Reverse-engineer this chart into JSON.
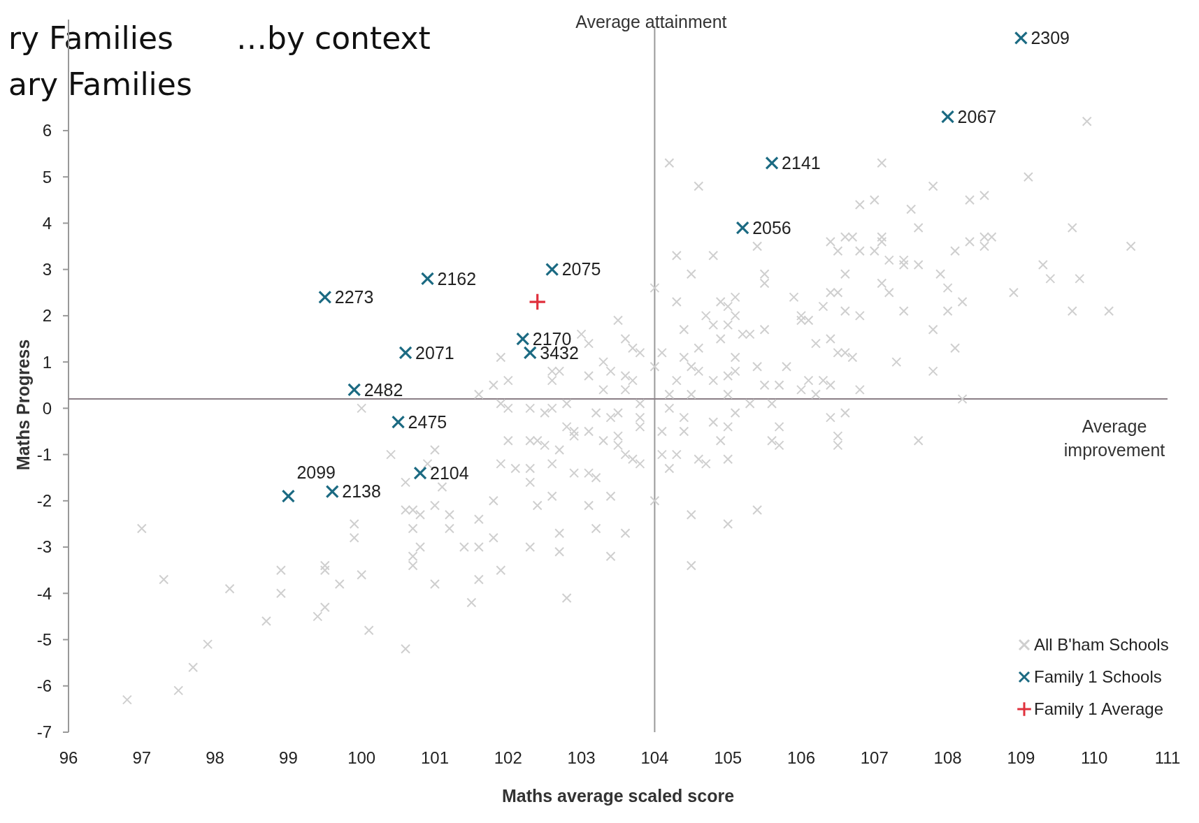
{
  "chart_data": {
    "type": "scatter",
    "title": "ry Families",
    "subtitle": "ary Families",
    "xlabel": "Maths average scaled score",
    "ylabel": "Maths Progress",
    "xlim": [
      96,
      111
    ],
    "ylim": [
      -7,
      8.4
    ],
    "xticks": [
      96,
      97,
      98,
      99,
      100,
      101,
      102,
      103,
      104,
      105,
      106,
      107,
      108,
      109,
      110,
      111
    ],
    "yticks": [
      -7,
      -6,
      -5,
      -4,
      -3,
      -2,
      -1,
      0,
      1,
      2,
      3,
      4,
      5,
      6
    ],
    "legend": "bottom right",
    "marker": "cross",
    "ref_lines": [
      {
        "axis": "x",
        "value": 104,
        "label": "Average attainment",
        "color": "#9a9a9a"
      },
      {
        "axis": "y",
        "value": 0.2,
        "label": "Average improvement",
        "color": "#8a7f86"
      }
    ],
    "annotations": [
      "…by context",
      {
        "text": "2309",
        "x": 109.0,
        "y": 8.0
      },
      {
        "text": "2067",
        "x": 108.0,
        "y": 6.3
      },
      {
        "text": "2141",
        "x": 105.6,
        "y": 5.3
      },
      {
        "text": "2056",
        "x": 105.2,
        "y": 3.9
      },
      {
        "text": "2075",
        "x": 102.6,
        "y": 3.0
      },
      {
        "text": "2162",
        "x": 100.9,
        "y": 2.8
      },
      {
        "text": "2273",
        "x": 99.5,
        "y": 2.4
      },
      {
        "text": "2170",
        "x": 102.2,
        "y": 1.5
      },
      {
        "text": "3432",
        "x": 102.3,
        "y": 1.2
      },
      {
        "text": "2071",
        "x": 100.6,
        "y": 1.2
      },
      {
        "text": "2482",
        "x": 99.9,
        "y": 0.4
      },
      {
        "text": "2475",
        "x": 100.5,
        "y": -0.3
      },
      {
        "text": "2104",
        "x": 100.8,
        "y": -1.4
      },
      {
        "text": "2138",
        "x": 99.6,
        "y": -1.8
      },
      {
        "text": "2099",
        "x": 99.0,
        "y": -1.9
      }
    ],
    "series": [
      {
        "name": "All B'ham Schools",
        "color": "#cfcfcf",
        "x": [
          97.0,
          96.8,
          97.3,
          97.7,
          97.5,
          97.9,
          98.2,
          98.7,
          98.9,
          98.9,
          99.4,
          99.5,
          99.5,
          99.5,
          99.7,
          99.9,
          99.9,
          100.0,
          100.1,
          100.0,
          100.4,
          101.0,
          100.9,
          100.6,
          101.1,
          101.0,
          100.6,
          100.7,
          100.8,
          100.7,
          100.8,
          100.7,
          100.7,
          101.0,
          100.6,
          101.2,
          101.2,
          101.6,
          101.4,
          101.6,
          101.8,
          101.9,
          101.6,
          101.5,
          101.8,
          101.9,
          102.1,
          102.3,
          102.3,
          102.6,
          102.9,
          103.1,
          103.2,
          102.6,
          102.4,
          103.1,
          103.4,
          103.2,
          102.7,
          102.7,
          103.6,
          103.4,
          102.3,
          102.8,
          101.9,
          102.0,
          102.3,
          102.5,
          102.6,
          102.8,
          103.2,
          103.4,
          103.5,
          103.8,
          103.8,
          103.8,
          102.0,
          102.3,
          102.4,
          102.5,
          102.7,
          102.8,
          102.9,
          102.9,
          103.1,
          103.3,
          103.5,
          103.5,
          103.6,
          103.7,
          103.8,
          104.2,
          104.4,
          104.4,
          104.1,
          104.8,
          105.0,
          105.1,
          104.9,
          104.1,
          104.3,
          104.2,
          104.6,
          104.7,
          105.0,
          105.3,
          105.6,
          105.7,
          105.6,
          105.7,
          104.5,
          105.0,
          105.4,
          104.5,
          104.0,
          101.9,
          101.8,
          102.0,
          101.6,
          102.6,
          102.7,
          102.6,
          103.1,
          103.3,
          103.4,
          103.5,
          103.6,
          103.7,
          103.8,
          103.1,
          103.0,
          103.3,
          103.6,
          103.7,
          103.6,
          104.0,
          104.0,
          104.1,
          104.2,
          104.6,
          104.3,
          104.8,
          104.5,
          104.3,
          105.4,
          105.5,
          105.5,
          104.4,
          104.9,
          105.0,
          105.1,
          104.7,
          104.8,
          105.0,
          105.1,
          104.9,
          105.2,
          105.3,
          105.5,
          104.4,
          104.5,
          104.6,
          104.6,
          104.3,
          104.8,
          105.0,
          105.1,
          105.1,
          105.4,
          105.8,
          105.5,
          105.7,
          105.9,
          106.0,
          104.2,
          104.5,
          105.0,
          109.9,
          107.1,
          109.1,
          107.8,
          106.8,
          107.0,
          107.5,
          108.3,
          108.5,
          107.6,
          109.7,
          106.4,
          106.6,
          106.7,
          106.5,
          106.8,
          107.0,
          107.1,
          107.1,
          107.2,
          107.4,
          107.4,
          107.6,
          108.1,
          108.3,
          108.5,
          108.6,
          108.5,
          110.5,
          109.3,
          109.4,
          109.8,
          108.9,
          107.9,
          108.0,
          106.6,
          107.1,
          107.2,
          106.4,
          106.5,
          106.3,
          106.6,
          106.8,
          107.4,
          108.0,
          108.2,
          109.7,
          110.2,
          106.0,
          106.1,
          107.8,
          106.4,
          106.2,
          108.1,
          106.5,
          106.6,
          106.7,
          107.3,
          107.8,
          106.1,
          106.3,
          106.4,
          106.0,
          106.2,
          106.8,
          108.2,
          106.4,
          106.6,
          106.5,
          106.5,
          107.6
        ],
        "values": [
          -2.6,
          -6.3,
          -3.7,
          -5.6,
          -6.1,
          -5.1,
          -3.9,
          -4.6,
          -3.5,
          -4.0,
          -4.5,
          -4.3,
          -3.4,
          -3.5,
          -3.8,
          -2.5,
          -2.8,
          -3.6,
          -4.8,
          0.0,
          -1.0,
          -0.9,
          -1.2,
          -1.6,
          -1.7,
          -2.1,
          -2.2,
          -2.2,
          -2.3,
          -2.6,
          -3.0,
          -3.2,
          -3.4,
          -3.8,
          -5.2,
          -2.3,
          -2.6,
          -2.4,
          -3.0,
          -3.0,
          -2.8,
          -3.5,
          -3.7,
          -4.2,
          -2.0,
          -1.2,
          -1.3,
          -1.3,
          -1.6,
          -1.2,
          -1.4,
          -1.4,
          -1.5,
          -1.9,
          -2.1,
          -2.1,
          -1.9,
          -2.6,
          -2.7,
          -3.1,
          -2.7,
          -3.2,
          -3.0,
          -4.1,
          0.1,
          0.0,
          0.0,
          -0.1,
          0.0,
          0.1,
          -0.1,
          -0.2,
          -0.1,
          0.1,
          -0.2,
          -0.4,
          -0.7,
          -0.7,
          -0.7,
          -0.8,
          -0.9,
          -0.4,
          -0.5,
          -0.6,
          -0.5,
          -0.7,
          -0.6,
          -0.8,
          -1.0,
          -1.1,
          -1.2,
          0.0,
          -0.2,
          -0.5,
          -0.5,
          -0.3,
          -0.4,
          -0.1,
          -0.7,
          -1.0,
          -1.0,
          -1.3,
          -1.1,
          -1.2,
          -1.1,
          0.1,
          0.1,
          -0.4,
          -0.7,
          -0.8,
          -2.3,
          -2.5,
          -2.2,
          -3.4,
          -2.0,
          1.1,
          0.5,
          0.6,
          0.3,
          0.8,
          0.8,
          0.6,
          0.7,
          1.0,
          0.8,
          1.9,
          1.5,
          1.3,
          1.2,
          1.4,
          1.6,
          0.4,
          0.7,
          0.6,
          0.4,
          2.6,
          0.9,
          1.2,
          5.3,
          4.8,
          3.3,
          3.3,
          2.9,
          2.3,
          3.5,
          2.9,
          2.7,
          1.7,
          2.3,
          2.2,
          2.4,
          2.0,
          1.8,
          1.8,
          2.0,
          1.5,
          1.6,
          1.6,
          1.7,
          1.1,
          0.9,
          1.3,
          0.8,
          0.6,
          0.6,
          0.7,
          1.1,
          0.8,
          0.9,
          0.9,
          0.5,
          0.5,
          2.4,
          1.9,
          0.3,
          0.3,
          0.3,
          6.2,
          5.3,
          5.0,
          4.8,
          4.4,
          4.5,
          4.3,
          4.5,
          4.6,
          3.9,
          3.9,
          3.6,
          3.7,
          3.7,
          3.4,
          3.4,
          3.4,
          3.7,
          3.6,
          3.2,
          3.2,
          3.1,
          3.1,
          3.4,
          3.6,
          3.7,
          3.7,
          3.5,
          3.5,
          3.1,
          2.8,
          2.8,
          2.5,
          2.9,
          2.6,
          2.9,
          2.7,
          2.5,
          2.5,
          2.5,
          2.2,
          2.1,
          2.0,
          2.1,
          2.1,
          2.3,
          2.1,
          2.1,
          2.0,
          1.9,
          1.7,
          1.5,
          1.4,
          1.3,
          1.2,
          1.2,
          1.1,
          1.0,
          0.8,
          0.6,
          0.6,
          0.5,
          0.4,
          0.3,
          0.4,
          0.2,
          -0.2,
          -0.1,
          -0.6,
          -0.8,
          -0.7
        ]
      },
      {
        "name": "Family 1 Schools",
        "color": "#1b6a82",
        "x": [
          109.0,
          108.0,
          105.6,
          105.2,
          102.6,
          100.9,
          99.5,
          102.2,
          102.3,
          100.6,
          99.9,
          100.5,
          100.8,
          99.6,
          99.0
        ],
        "values": [
          8.0,
          6.3,
          5.3,
          3.9,
          3.0,
          2.8,
          2.4,
          1.5,
          1.2,
          1.2,
          0.4,
          -0.3,
          -1.4,
          -1.8,
          -1.9
        ]
      },
      {
        "name": "Family 1 Average",
        "color": "#e0303c",
        "marker": "cross",
        "x": [
          102.4
        ],
        "values": [
          2.3
        ]
      }
    ]
  }
}
